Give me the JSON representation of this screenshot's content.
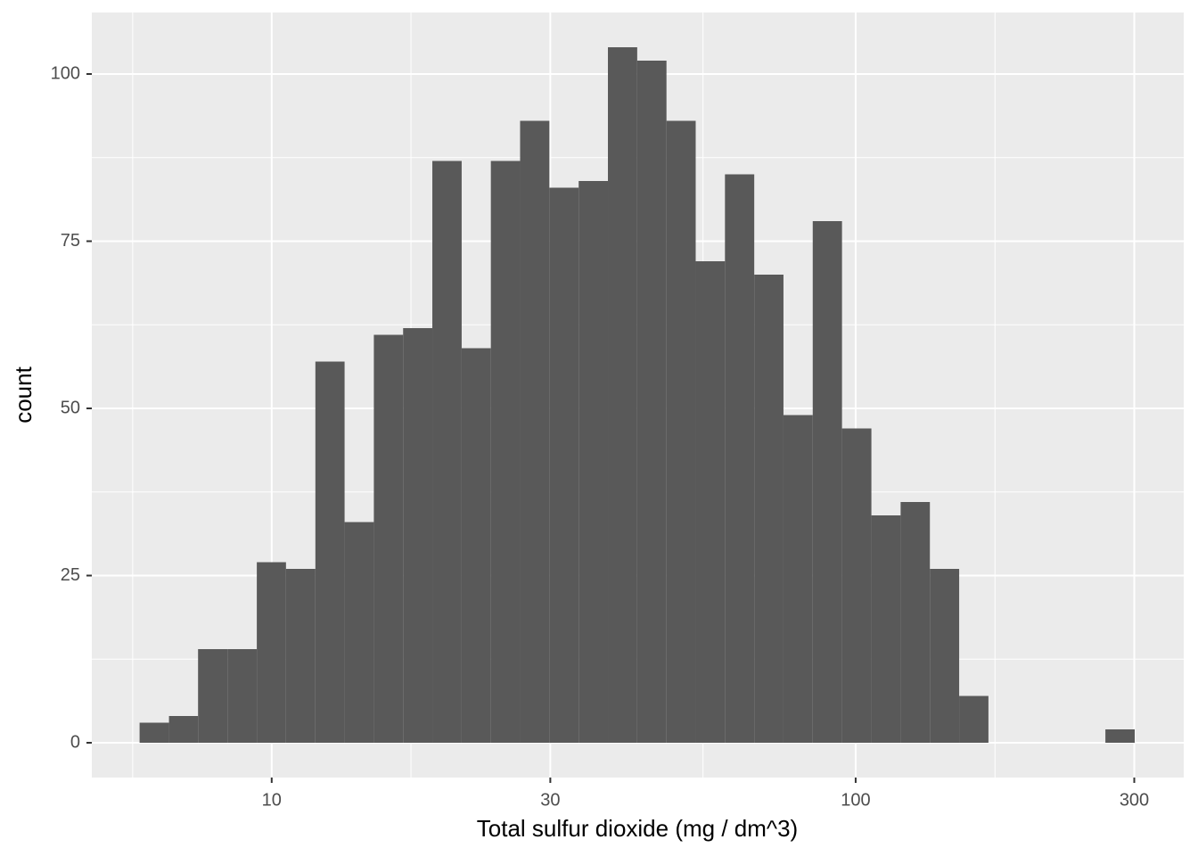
{
  "chart_data": {
    "type": "histogram",
    "x_label": "Total sulfur dioxide (mg / dm^3)",
    "y_label": "count",
    "bins": [
      5.94,
      6.67,
      7.48,
      8.4,
      9.43,
      10.58,
      11.88,
      13.33,
      14.96,
      16.79,
      18.84,
      21.15,
      23.73,
      26.63,
      29.89,
      33.55,
      37.65,
      42.26,
      47.43,
      53.22,
      59.73,
      67.04,
      75.23,
      84.43,
      94.76,
      106.4,
      119.4,
      134.0,
      150.4,
      168.8,
      189.4,
      212.6,
      238.5,
      267.7,
      300.5
    ],
    "values": [
      3,
      4,
      14,
      14,
      27,
      26,
      57,
      33,
      61,
      62,
      87,
      59,
      87,
      93,
      83,
      84,
      104,
      102,
      93,
      72,
      85,
      70,
      49,
      78,
      47,
      34,
      36,
      26,
      7,
      0,
      0,
      0,
      0,
      2
    ],
    "color": "#595959",
    "xscale": "log",
    "xlim": [
      4.92,
      364.6
    ],
    "xticks": [
      10,
      30,
      100,
      300
    ],
    "xminor": [
      5.78,
      17.32,
      54.77,
      173.2
    ],
    "ylim": [
      -5.2,
      109.2
    ],
    "yticks": [
      0,
      25,
      50,
      75,
      100
    ],
    "yminor": [
      12.5,
      37.5,
      62.5,
      87.5
    ],
    "grid": true
  }
}
